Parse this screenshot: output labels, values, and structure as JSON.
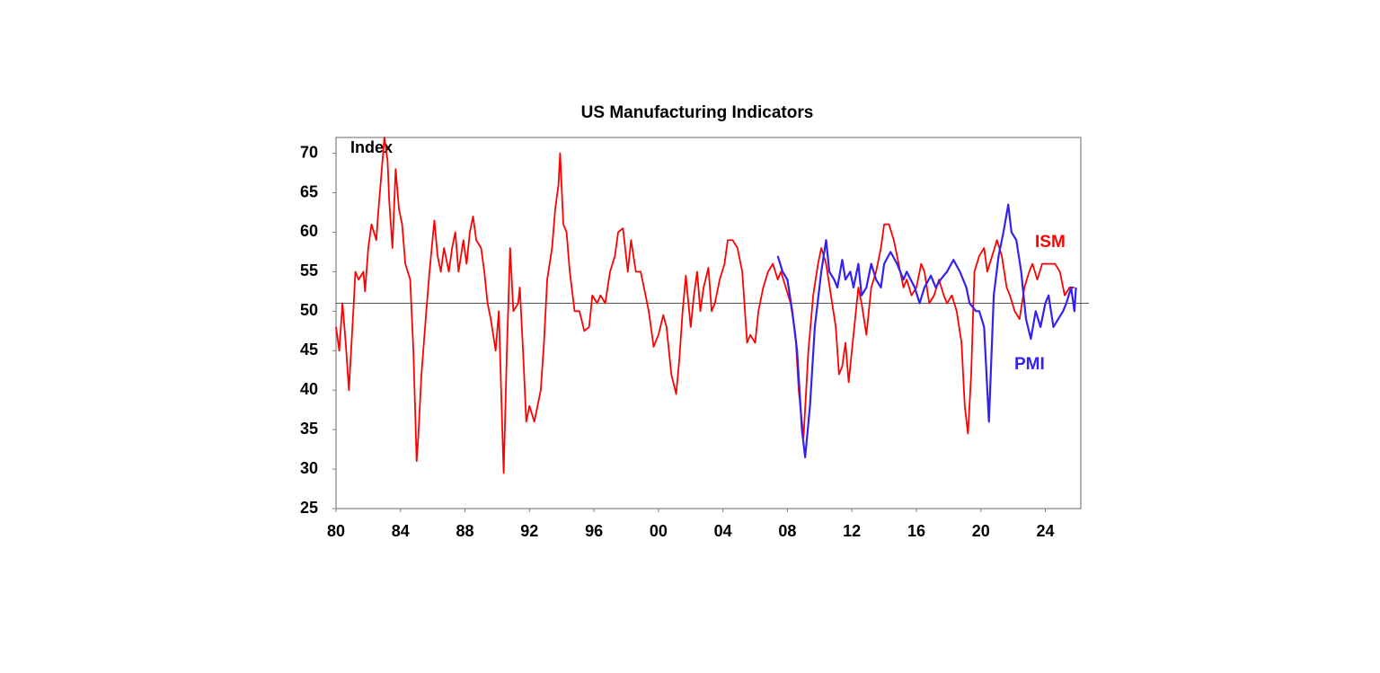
{
  "chart_data": {
    "type": "line",
    "title": "US Manufacturing Indicators",
    "y_label": "Index",
    "xlim": [
      1980,
      2026.2
    ],
    "ylim": [
      25,
      72
    ],
    "xticks": [
      {
        "value": 1980,
        "label": "80"
      },
      {
        "value": 1984,
        "label": "84"
      },
      {
        "value": 1988,
        "label": "88"
      },
      {
        "value": 1992,
        "label": "92"
      },
      {
        "value": 1996,
        "label": "96"
      },
      {
        "value": 2000,
        "label": "00"
      },
      {
        "value": 2004,
        "label": "04"
      },
      {
        "value": 2008,
        "label": "08"
      },
      {
        "value": 2012,
        "label": "12"
      },
      {
        "value": 2016,
        "label": "16"
      },
      {
        "value": 2020,
        "label": "20"
      },
      {
        "value": 2024,
        "label": "24"
      }
    ],
    "yticks": [
      25,
      30,
      35,
      40,
      45,
      50,
      55,
      60,
      65,
      70
    ],
    "hline": 51,
    "grid": false,
    "series": [
      {
        "name": "ISM",
        "color": "#ff0000",
        "x": [
          1980.0,
          1980.2,
          1980.4,
          1980.6,
          1980.8,
          1981.1,
          1981.2,
          1981.4,
          1981.7,
          1981.8,
          1982.0,
          1982.2,
          1982.5,
          1982.6,
          1982.8,
          1983.0,
          1983.2,
          1983.3,
          1983.5,
          1983.7,
          1983.9,
          1984.1,
          1984.3,
          1984.6,
          1984.8,
          1985.0,
          1985.1,
          1985.3,
          1985.6,
          1985.8,
          1986.1,
          1986.3,
          1986.5,
          1986.7,
          1987.0,
          1987.2,
          1987.4,
          1987.6,
          1987.9,
          1988.1,
          1988.3,
          1988.5,
          1988.7,
          1989.0,
          1989.2,
          1989.4,
          1989.6,
          1989.9,
          1990.1,
          1990.3,
          1990.4,
          1990.6,
          1990.8,
          1991.0,
          1991.3,
          1991.4,
          1991.6,
          1991.8,
          1992.0,
          1992.3,
          1992.5,
          1992.7,
          1992.9,
          1993.1,
          1993.4,
          1993.6,
          1993.8,
          1993.9,
          1994.1,
          1994.3,
          1994.5,
          1994.8,
          1995.1,
          1995.4,
          1995.7,
          1995.9,
          1996.2,
          1996.4,
          1996.7,
          1997.0,
          1997.3,
          1997.5,
          1997.8,
          1998.1,
          1998.3,
          1998.6,
          1998.9,
          1999.2,
          1999.4,
          1999.7,
          2000.0,
          2000.3,
          2000.5,
          2000.8,
          2001.1,
          2001.3,
          2001.5,
          2001.7,
          2002.0,
          2002.2,
          2002.4,
          2002.6,
          2002.8,
          2003.1,
          2003.3,
          2003.5,
          2003.8,
          2004.1,
          2004.3,
          2004.6,
          2004.9,
          2005.2,
          2005.5,
          2005.7,
          2006.0,
          2006.2,
          2006.5,
          2006.8,
          2007.1,
          2007.4,
          2007.6,
          2007.9,
          2008.2,
          2008.5,
          2008.7,
          2009.0,
          2009.3,
          2009.6,
          2009.9,
          2010.1,
          2010.4,
          2010.7,
          2011.0,
          2011.2,
          2011.4,
          2011.6,
          2011.8,
          2012.1,
          2012.4,
          2012.6,
          2012.9,
          2013.2,
          2013.5,
          2013.8,
          2014.0,
          2014.3,
          2014.6,
          2014.9,
          2015.2,
          2015.4,
          2015.7,
          2016.0,
          2016.3,
          2016.5,
          2016.8,
          2017.1,
          2017.4,
          2017.7,
          2017.9,
          2018.2,
          2018.5,
          2018.8,
          2019.0,
          2019.2,
          2019.4,
          2019.6,
          2019.9,
          2020.2,
          2020.4,
          2020.7,
          2021.0,
          2021.3,
          2021.6,
          2021.8,
          2022.1,
          2022.4,
          2022.7,
          2023.0,
          2023.2,
          2023.5,
          2023.8,
          2024.0,
          2024.3,
          2024.6,
          2024.9,
          2025.2,
          2025.5,
          2025.8
        ],
        "values": [
          48,
          45,
          51,
          46,
          40,
          51,
          55,
          54,
          55,
          52.5,
          58,
          61,
          59,
          62,
          67,
          72,
          69,
          64,
          58,
          68,
          63,
          61,
          56,
          54,
          45,
          31,
          34,
          42,
          50,
          55,
          61.5,
          57,
          55,
          58,
          55,
          58,
          60,
          55,
          59,
          56,
          60,
          62,
          59,
          58,
          55,
          51,
          49,
          45,
          50,
          36,
          29.5,
          45,
          58,
          50,
          51,
          53,
          45,
          36,
          38,
          36,
          38,
          40,
          46,
          54,
          58,
          63,
          66,
          70,
          61,
          60,
          55,
          50,
          50,
          47.5,
          48,
          52,
          51,
          52,
          51,
          55,
          57,
          60,
          60.5,
          55,
          59,
          55,
          55,
          52,
          50,
          45.5,
          47,
          49.5,
          48,
          42,
          39.5,
          44,
          50,
          54.5,
          48,
          52,
          55,
          50,
          53,
          55.5,
          50,
          51,
          54,
          56,
          59,
          59,
          58,
          55,
          46,
          47,
          46,
          50,
          53,
          55,
          56,
          54,
          55,
          53,
          51,
          47,
          40,
          34,
          45,
          52,
          56,
          58,
          56,
          52,
          48,
          42,
          43,
          46,
          41,
          47,
          53,
          51,
          47,
          53,
          55,
          58,
          61,
          61,
          59,
          56,
          53,
          54,
          52,
          53,
          56,
          55,
          51,
          52,
          54,
          52,
          51,
          52,
          50,
          46,
          38,
          34.5,
          42,
          55,
          57,
          58,
          55,
          57,
          59,
          57,
          53,
          52,
          50,
          49,
          53,
          55,
          56,
          54,
          56,
          56,
          56,
          56,
          55,
          52,
          53,
          53
        ]
      },
      {
        "name": "PMI",
        "color": "#3322ee",
        "x": [
          2007.4,
          2007.7,
          2008.0,
          2008.3,
          2008.6,
          2008.9,
          2009.1,
          2009.4,
          2009.7,
          2010.1,
          2010.4,
          2010.6,
          2010.9,
          2011.1,
          2011.4,
          2011.6,
          2011.9,
          2012.1,
          2012.4,
          2012.6,
          2012.9,
          2013.2,
          2013.5,
          2013.8,
          2014.0,
          2014.4,
          2014.8,
          2015.2,
          2015.4,
          2015.9,
          2016.2,
          2016.5,
          2016.9,
          2017.2,
          2017.5,
          2017.9,
          2018.3,
          2018.7,
          2019.1,
          2019.3,
          2019.7,
          2019.9,
          2020.2,
          2020.5,
          2020.8,
          2021.1,
          2021.4,
          2021.7,
          2021.9,
          2022.2,
          2022.5,
          2022.8,
          2023.1,
          2023.4,
          2023.7,
          2024.0,
          2024.2,
          2024.5,
          2024.8,
          2025.1,
          2025.3,
          2025.6,
          2025.8,
          2025.9
        ],
        "values": [
          57,
          55,
          54,
          50,
          45,
          35,
          31.5,
          38,
          48,
          55,
          59,
          55,
          54,
          53,
          56.5,
          54,
          55,
          53,
          56,
          52,
          53,
          56,
          54,
          53,
          56,
          57.5,
          56,
          54,
          55,
          53,
          51,
          53,
          54.5,
          53,
          54,
          55,
          56.5,
          55,
          53,
          51,
          50,
          50,
          48,
          36,
          52,
          57,
          60,
          63.5,
          60,
          59,
          55,
          49,
          46.5,
          50,
          48,
          51,
          52,
          48,
          49,
          50,
          51,
          53,
          50,
          53
        ]
      }
    ]
  }
}
